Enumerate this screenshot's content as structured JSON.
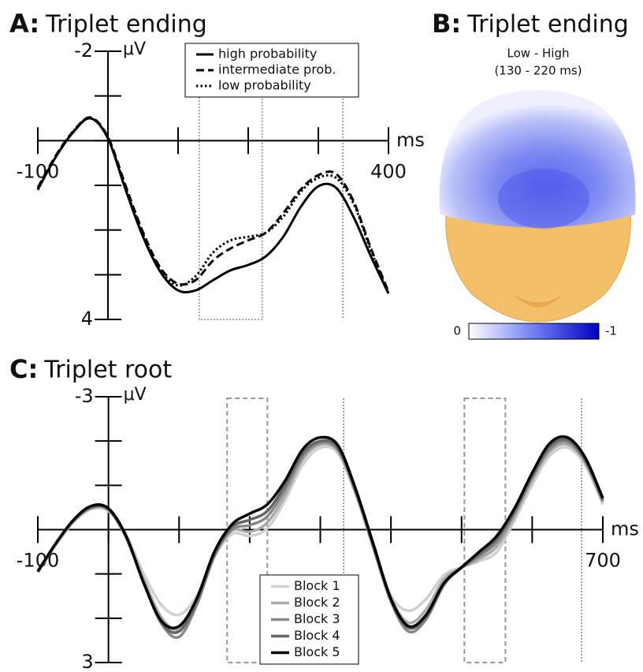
{
  "chart_data": [
    {
      "type": "line",
      "panel": "A:",
      "title": "Triplet ending",
      "x_label": "ms",
      "y_label": "μV",
      "y_inverted": true,
      "x": [
        -100,
        -75,
        -50,
        -25,
        0,
        25,
        50,
        75,
        100,
        125,
        150,
        175,
        200,
        225,
        250,
        275,
        300,
        325,
        350,
        375,
        400
      ],
      "series": [
        {
          "name": "high probability",
          "color": "#000000",
          "dash": "solid",
          "values": [
            1.09,
            0.38,
            -0.18,
            -0.5,
            -0.05,
            1.09,
            2.15,
            2.94,
            3.35,
            3.35,
            3.12,
            2.9,
            2.78,
            2.59,
            2.15,
            1.48,
            1.02,
            1.05,
            1.7,
            2.59,
            3.42
          ]
        },
        {
          "name": "intermediate prob.",
          "color": "#000000",
          "dash": "dashed",
          "values": [
            1.05,
            0.35,
            -0.2,
            -0.52,
            -0.08,
            1.0,
            2.05,
            2.85,
            3.2,
            3.12,
            2.68,
            2.41,
            2.23,
            2.06,
            1.62,
            1.09,
            0.77,
            0.74,
            1.35,
            2.41,
            3.38
          ]
        },
        {
          "name": "low probability",
          "color": "#000000",
          "dash": "dotted",
          "values": [
            1.1,
            0.38,
            -0.2,
            -0.5,
            -0.05,
            1.05,
            2.1,
            2.9,
            3.24,
            3.03,
            2.5,
            2.23,
            2.15,
            2.06,
            1.7,
            1.14,
            0.83,
            0.83,
            1.4,
            2.46,
            3.42
          ]
        }
      ],
      "xlim": [
        -100,
        400
      ],
      "ylim": [
        -2,
        4
      ],
      "xticks": [
        -100,
        400
      ],
      "yticks": [
        -2,
        4
      ],
      "xticks_minor": [
        0,
        100,
        200,
        300
      ],
      "yticks_minor": [
        -1,
        0,
        1,
        2,
        3
      ],
      "highlight_windows": [
        [
          130,
          220
        ]
      ],
      "marker_times": [
        335
      ],
      "legend": "upper right"
    },
    {
      "type": "topomap",
      "panel": "B:",
      "title": "Triplet ending",
      "subtitle": [
        "Low - High",
        "(130 - 220 ms)"
      ],
      "colorbar": {
        "lim": [
          0,
          -1
        ],
        "ticks": [
          0,
          -1
        ],
        "colors": [
          "#ffffff",
          "#7080f4",
          "#0000c0"
        ]
      }
    },
    {
      "type": "line",
      "panel": "C:",
      "title": "Triplet root",
      "x_label": "ms",
      "y_label": "μV",
      "y_inverted": true,
      "x": [
        -100,
        -75,
        -50,
        -25,
        0,
        25,
        50,
        75,
        100,
        125,
        150,
        175,
        200,
        225,
        250,
        275,
        300,
        325,
        350,
        375,
        400,
        425,
        450,
        475,
        500,
        525,
        550,
        575,
        600,
        625,
        650,
        675,
        700
      ],
      "series": [
        {
          "name": "Block 1",
          "color": "#d0d0d0",
          "dash": "solid",
          "values": [
            0.94,
            0.35,
            -0.16,
            -0.46,
            -0.42,
            0.12,
            1.0,
            1.7,
            1.92,
            1.5,
            0.6,
            0.1,
            0.14,
            -0.03,
            -0.66,
            -1.46,
            -1.85,
            -1.72,
            -0.8,
            0.36,
            1.49,
            1.83,
            1.56,
            1.03,
            0.85,
            0.71,
            0.5,
            -0.21,
            -1.01,
            -1.67,
            -1.85,
            -1.46,
            -0.57
          ]
        },
        {
          "name": "Block 2",
          "color": "#aaaaaa",
          "dash": "solid",
          "values": [
            0.95,
            0.34,
            -0.18,
            -0.48,
            -0.44,
            0.16,
            1.12,
            1.98,
            2.25,
            1.62,
            0.58,
            0.02,
            0.05,
            -0.16,
            -0.78,
            -1.58,
            -1.92,
            -1.78,
            -0.85,
            0.36,
            1.55,
            2.1,
            1.8,
            1.12,
            0.86,
            0.66,
            0.38,
            -0.3,
            -1.12,
            -1.76,
            -1.92,
            -1.52,
            -0.62
          ]
        },
        {
          "name": "Block 3",
          "color": "#888888",
          "dash": "solid",
          "values": [
            0.96,
            0.34,
            -0.19,
            -0.49,
            -0.45,
            0.18,
            1.2,
            2.12,
            2.42,
            1.7,
            0.6,
            0.0,
            -0.1,
            -0.3,
            -0.9,
            -1.65,
            -1.96,
            -1.8,
            -0.85,
            0.4,
            1.62,
            2.3,
            2.02,
            1.25,
            0.86,
            0.6,
            0.28,
            -0.38,
            -1.18,
            -1.82,
            -1.98,
            -1.55,
            -0.65
          ]
        },
        {
          "name": "Block 4",
          "color": "#666666",
          "dash": "solid",
          "values": [
            0.95,
            0.33,
            -0.2,
            -0.51,
            -0.46,
            0.16,
            1.2,
            2.1,
            2.3,
            1.62,
            0.55,
            -0.06,
            -0.22,
            -0.42,
            -1.0,
            -1.72,
            -2.0,
            -1.85,
            -0.88,
            0.36,
            1.6,
            2.22,
            1.96,
            1.22,
            0.86,
            0.55,
            0.2,
            -0.42,
            -1.22,
            -1.88,
            -2.02,
            -1.58,
            -0.68
          ]
        },
        {
          "name": "Block 5",
          "color": "#000000",
          "dash": "solid",
          "values": [
            0.94,
            0.32,
            -0.21,
            -0.53,
            -0.48,
            0.14,
            1.21,
            2.06,
            2.18,
            1.56,
            0.5,
            -0.12,
            -0.36,
            -0.57,
            -1.1,
            -1.81,
            -2.08,
            -1.9,
            -0.92,
            0.32,
            1.56,
            2.18,
            1.92,
            1.21,
            0.85,
            0.5,
            0.14,
            -0.48,
            -1.28,
            -1.95,
            -2.08,
            -1.63,
            -0.71
          ]
        }
      ],
      "xlim": [
        -100,
        700
      ],
      "ylim": [
        -3,
        3
      ],
      "xticks": [
        -100,
        700
      ],
      "yticks": [
        -3,
        3
      ],
      "xticks_minor": [
        0,
        100,
        200,
        300,
        400,
        500,
        600
      ],
      "yticks_minor": [
        -2,
        -1,
        0,
        1,
        2
      ],
      "highlight_windows": [
        [
          168,
          225
        ],
        [
          504,
          562
        ]
      ],
      "marker_times": [
        333,
        670
      ],
      "legend": "lower center"
    }
  ]
}
